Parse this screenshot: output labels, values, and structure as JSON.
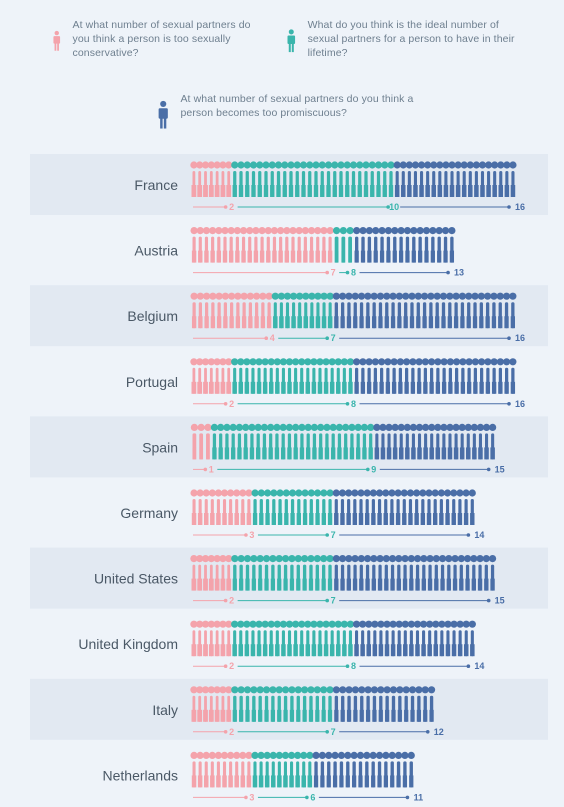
{
  "legend": {
    "conservative": "At what number of sexual partners do you think a person is too sexually conservative?",
    "ideal": "What do you think is the ideal number of sexual partners for a person to have in their lifetime?",
    "promiscuous": "At what number of sexual partners do you think a person becomes too promiscuous?"
  },
  "colors": {
    "conservative": "#f4a3ab",
    "ideal": "#3ab5ac",
    "promiscuous": "#4a6ea7",
    "row_band": "#e2e9f2",
    "background": "#eef3f9"
  },
  "chart_data": {
    "type": "bar",
    "title": "",
    "categories": [
      "France",
      "Austria",
      "Belgium",
      "Portugal",
      "Spain",
      "Germany",
      "United States",
      "United Kingdom",
      "Italy",
      "Netherlands"
    ],
    "series": [
      {
        "name": "At what number of sexual partners do you think a person is too sexually conservative?",
        "values": [
          2,
          7,
          4,
          2,
          1,
          3,
          2,
          2,
          2,
          3
        ]
      },
      {
        "name": "What do you think is the ideal number of sexual partners for a person to have in their lifetime?",
        "values": [
          10,
          8,
          7,
          8,
          9,
          7,
          7,
          8,
          7,
          6
        ]
      },
      {
        "name": "At what number of sexual partners do you think a person becomes too promiscuous?",
        "values": [
          16,
          13,
          16,
          16,
          15,
          14,
          15,
          14,
          12,
          11
        ]
      }
    ]
  }
}
